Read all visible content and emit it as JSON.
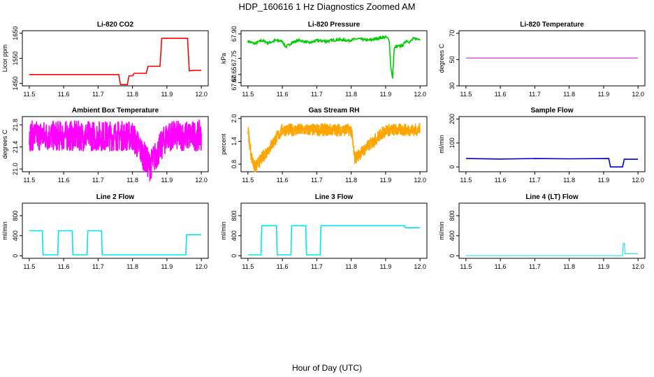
{
  "title": "HDP_160616  1 Hz Diagnostics Zoomed AM",
  "xlabel": "Hour of Day (UTC)",
  "chart_data": [
    {
      "type": "line",
      "title": "Li-820 CO2",
      "ylabel": "Licor ppm",
      "xlim": [
        11.5,
        12.0
      ],
      "ylim": [
        1440,
        1660
      ],
      "xticks": [
        "11.5",
        "11.6",
        "11.7",
        "11.8",
        "11.9",
        "12.0"
      ],
      "yticks": [
        "1450",
        "1550",
        "1650"
      ],
      "color": "#ff0000",
      "series": [
        {
          "x": [
            11.5,
            11.76,
            11.765,
            11.785,
            11.79,
            11.8,
            11.805,
            11.84,
            11.845,
            11.88,
            11.885,
            11.96,
            11.965,
            11.98,
            12.0
          ],
          "y": [
            1485,
            1485,
            1445,
            1445,
            1480,
            1480,
            1490,
            1490,
            1518,
            1518,
            1630,
            1630,
            1500,
            1502,
            1502
          ]
        }
      ]
    },
    {
      "type": "line",
      "title": "Li-820 Pressure",
      "ylabel": "kPa",
      "xlim": [
        11.5,
        12.0
      ],
      "ylim": [
        67.58,
        67.92
      ],
      "xticks": [
        "11.5",
        "11.6",
        "11.7",
        "11.8",
        "11.9",
        "12.0"
      ],
      "yticks": [
        "67.60",
        "67.65",
        "67.75",
        "67.90"
      ],
      "color": "#00cc00",
      "series": [
        {
          "x": [
            11.5,
            11.52,
            11.54,
            11.56,
            11.58,
            11.6,
            11.61,
            11.63,
            11.65,
            11.68,
            11.7,
            11.73,
            11.76,
            11.79,
            11.82,
            11.85,
            11.88,
            11.9,
            11.91,
            11.915,
            11.92,
            11.925,
            11.93,
            11.95,
            11.96,
            11.97,
            11.98,
            12.0
          ],
          "y": [
            67.855,
            67.84,
            67.86,
            67.845,
            67.86,
            67.855,
            67.82,
            67.85,
            67.86,
            67.845,
            67.86,
            67.855,
            67.865,
            67.86,
            67.87,
            67.86,
            67.875,
            67.88,
            67.87,
            67.7,
            67.62,
            67.81,
            67.82,
            67.83,
            67.86,
            67.85,
            67.87,
            67.87
          ]
        }
      ]
    },
    {
      "type": "line",
      "title": "Li-820 Temperature",
      "ylabel": "degrees C",
      "xlim": [
        11.5,
        12.0
      ],
      "ylim": [
        30,
        72
      ],
      "xticks": [
        "11.5",
        "11.6",
        "11.7",
        "11.8",
        "11.9",
        "12.0"
      ],
      "yticks": [
        "30",
        "50",
        "70"
      ],
      "color": "#cc00cc",
      "series": [
        {
          "x": [
            11.5,
            12.0
          ],
          "y": [
            51.2,
            51.2
          ]
        }
      ]
    },
    {
      "type": "line",
      "title": "Ambient Box Temperature",
      "ylabel": "degrees C",
      "xlim": [
        11.5,
        12.0
      ],
      "ylim": [
        20.95,
        21.95
      ],
      "xticks": [
        "11.5",
        "11.6",
        "11.7",
        "11.8",
        "11.9",
        "12.0"
      ],
      "yticks": [
        "21.0",
        "21.4",
        "21.8"
      ],
      "color": "#ff00ff",
      "series": [
        {
          "x": [
            11.5,
            11.6,
            11.7,
            11.8,
            11.85,
            11.9,
            12.0
          ],
          "y": [
            21.6,
            21.6,
            21.6,
            21.6,
            21.05,
            21.6,
            21.6
          ]
        }
      ]
    },
    {
      "type": "line",
      "title": "Gas Stream RH",
      "ylabel": "percent",
      "xlim": [
        11.5,
        12.0
      ],
      "ylim": [
        0.6,
        2.05
      ],
      "xticks": [
        "11.5",
        "11.6",
        "11.7",
        "11.8",
        "11.9",
        "12.0"
      ],
      "yticks": [
        "0.8",
        "1.4",
        "2.0"
      ],
      "color": "#ffa500",
      "series": [
        {
          "x": [
            11.5,
            11.51,
            11.52,
            11.6,
            11.7,
            11.8,
            11.81,
            11.9,
            12.0
          ],
          "y": [
            1.7,
            1.0,
            0.7,
            1.7,
            1.7,
            1.7,
            0.95,
            1.7,
            1.7
          ]
        }
      ]
    },
    {
      "type": "line",
      "title": "Sample Flow",
      "ylabel": "ml/min",
      "xlim": [
        11.5,
        12.0
      ],
      "ylim": [
        -20,
        210
      ],
      "xticks": [
        "11.5",
        "11.6",
        "11.7",
        "11.8",
        "11.9",
        "12.0"
      ],
      "yticks": [
        "0",
        "100",
        "200"
      ],
      "color": "#0000cc",
      "series": [
        {
          "x": [
            11.5,
            11.6,
            11.7,
            11.8,
            11.915,
            11.92,
            11.955,
            11.96,
            12.0
          ],
          "y": [
            35,
            33,
            35,
            34,
            35,
            0,
            0,
            32,
            32
          ]
        }
      ]
    },
    {
      "type": "line",
      "title": "Line 2 Flow",
      "ylabel": "ml/min",
      "xlim": [
        11.5,
        12.0
      ],
      "ylim": [
        -50,
        1050
      ],
      "xticks": [
        "11.5",
        "11.6",
        "11.7",
        "11.8",
        "11.9",
        "12.0"
      ],
      "yticks": [
        "0",
        "400",
        "800"
      ],
      "color": "#00e5ee",
      "series": [
        {
          "x": [
            11.5,
            11.538,
            11.54,
            11.583,
            11.585,
            11.625,
            11.627,
            11.668,
            11.67,
            11.71,
            11.712,
            11.955,
            11.957,
            12.0
          ],
          "y": [
            500,
            500,
            20,
            20,
            500,
            500,
            20,
            20,
            500,
            500,
            20,
            20,
            420,
            420
          ]
        }
      ]
    },
    {
      "type": "line",
      "title": "Line 3 Flow",
      "ylabel": "ml/min",
      "xlim": [
        11.5,
        12.0
      ],
      "ylim": [
        -50,
        1050
      ],
      "xticks": [
        "11.5",
        "11.6",
        "11.7",
        "11.8",
        "11.9",
        "12.0"
      ],
      "yticks": [
        "0",
        "400",
        "800"
      ],
      "color": "#00e5ee",
      "series": [
        {
          "x": [
            11.5,
            11.538,
            11.54,
            11.583,
            11.585,
            11.625,
            11.627,
            11.668,
            11.67,
            11.71,
            11.712,
            11.955,
            11.957,
            12.0
          ],
          "y": [
            20,
            20,
            600,
            600,
            20,
            20,
            600,
            600,
            20,
            20,
            600,
            600,
            560,
            560
          ]
        }
      ]
    },
    {
      "type": "line",
      "title": "Line 4 (LT) Flow",
      "ylabel": "ml/min",
      "xlim": [
        11.5,
        12.0
      ],
      "ylim": [
        -50,
        1050
      ],
      "xticks": [
        "11.5",
        "11.6",
        "11.7",
        "11.8",
        "11.9",
        "12.0"
      ],
      "yticks": [
        "0",
        "400",
        "800"
      ],
      "color": "#00e5ee",
      "series": [
        {
          "x": [
            11.5,
            11.955,
            11.957,
            11.96,
            11.962,
            12.0
          ],
          "y": [
            5,
            5,
            250,
            250,
            40,
            40
          ]
        }
      ]
    }
  ]
}
